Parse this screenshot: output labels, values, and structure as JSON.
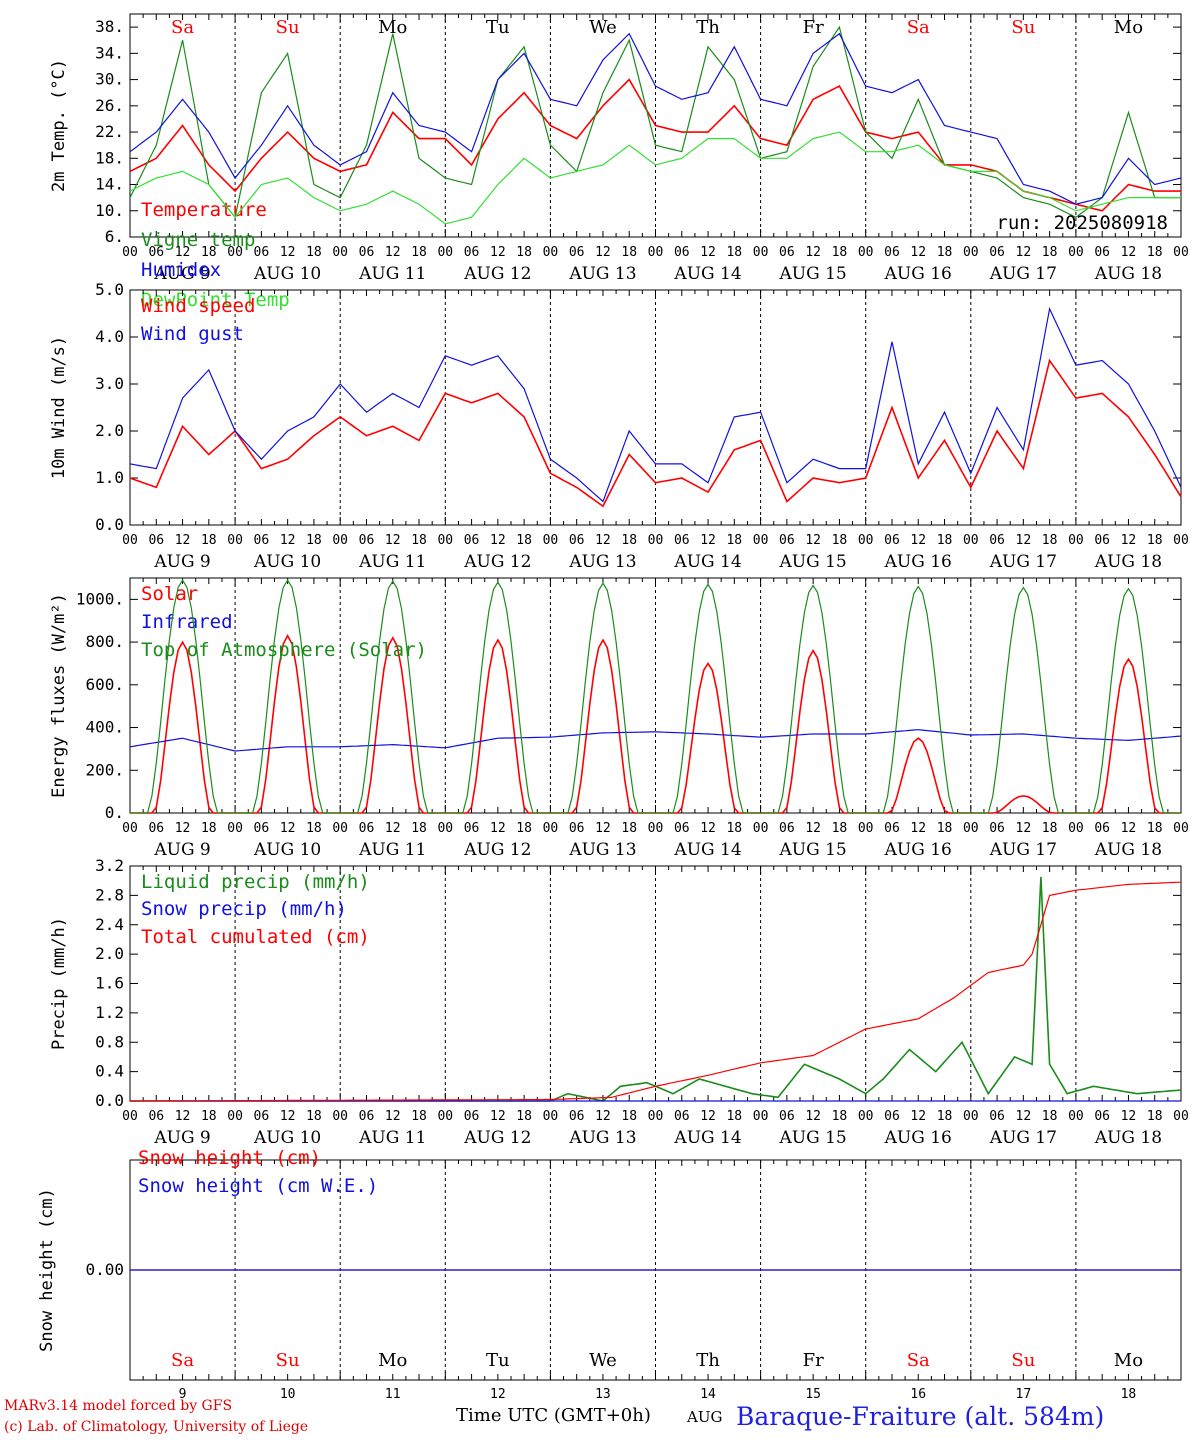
{
  "colors": {
    "red": "#ff0000",
    "blue": "#1010e0",
    "green": "#1a8c1a",
    "lightgreen": "#32e032"
  },
  "weekdays": [
    "Sa",
    "Su",
    "Mo",
    "Tu",
    "We",
    "Th",
    "Fr",
    "Sa",
    "Su",
    "Mo"
  ],
  "weekday_colors": [
    "red",
    "red",
    "black",
    "black",
    "black",
    "black",
    "black",
    "red",
    "red",
    "black"
  ],
  "dates": [
    "AUG  9",
    "AUG 10",
    "AUG 11",
    "AUG 12",
    "AUG 13",
    "AUG 14",
    "AUG 15",
    "AUG 16",
    "AUG 17",
    "AUG 18"
  ],
  "day_numbers": [
    "9",
    "10",
    "11",
    "12",
    "13",
    "14",
    "15",
    "16",
    "17",
    "18"
  ],
  "hour_ticks": [
    "00",
    "06",
    "12",
    "18"
  ],
  "run_label": "run: 2025080918",
  "footer": {
    "line1": "MARv3.14 model forced by GFS",
    "line2": "(c) Lab. of Climatology, University of Liege",
    "time_label": "Time UTC (GMT+0h)",
    "month": "AUG",
    "station": "Baraque-Fraiture (alt. 584m)"
  },
  "chart_data": [
    {
      "type": "line",
      "ylabel": "2m Temp. (°C)",
      "ylim": [
        6,
        40
      ],
      "yticks": [
        "6.",
        "10.",
        "14.",
        "18.",
        "22.",
        "26.",
        "30.",
        "34.",
        "38."
      ],
      "x_unit": "hours since AUG 9 00 UTC",
      "series": [
        {
          "name": "Temperature",
          "color": "red",
          "x": [
            0,
            6,
            12,
            18,
            24,
            30,
            36,
            42,
            48,
            54,
            60,
            66,
            72,
            78,
            84,
            90,
            96,
            102,
            108,
            114,
            120,
            126,
            132,
            138,
            144,
            150,
            156,
            162,
            168,
            174,
            180,
            186,
            192,
            198,
            204,
            210,
            216,
            222,
            228,
            234,
            240
          ],
          "values": [
            16,
            18,
            23,
            17,
            13,
            18,
            22,
            18,
            16,
            17,
            25,
            21,
            21,
            17,
            24,
            28,
            23,
            21,
            26,
            30,
            23,
            22,
            22,
            26,
            21,
            20,
            27,
            29,
            22,
            21,
            22,
            17,
            17,
            16,
            13,
            12,
            11,
            10,
            14,
            13,
            13
          ]
        },
        {
          "name": "Vigne temp",
          "color": "green",
          "x": [
            0,
            6,
            12,
            18,
            24,
            30,
            36,
            42,
            48,
            54,
            60,
            66,
            72,
            78,
            84,
            90,
            96,
            102,
            108,
            114,
            120,
            126,
            132,
            138,
            144,
            150,
            156,
            162,
            168,
            174,
            180,
            186,
            192,
            198,
            204,
            210,
            216,
            222,
            228,
            234,
            240
          ],
          "values": [
            12,
            20,
            36,
            14,
            9,
            28,
            34,
            14,
            12,
            20,
            37,
            18,
            15,
            14,
            30,
            35,
            20,
            16,
            28,
            36,
            20,
            19,
            35,
            30,
            18,
            19,
            32,
            38,
            22,
            18,
            27,
            17,
            16,
            15,
            12,
            11,
            9,
            12,
            25,
            12,
            12
          ]
        },
        {
          "name": "Humidex",
          "color": "blue",
          "x": [
            0,
            6,
            12,
            18,
            24,
            30,
            36,
            42,
            48,
            54,
            60,
            66,
            72,
            78,
            84,
            90,
            96,
            102,
            108,
            114,
            120,
            126,
            132,
            138,
            144,
            150,
            156,
            162,
            168,
            174,
            180,
            186,
            192,
            198,
            204,
            210,
            216,
            222,
            228,
            234,
            240
          ],
          "values": [
            19,
            22,
            27,
            22,
            15,
            20,
            26,
            20,
            17,
            19,
            28,
            23,
            22,
            19,
            30,
            34,
            27,
            26,
            33,
            37,
            29,
            27,
            28,
            35,
            27,
            26,
            34,
            37,
            29,
            28,
            30,
            23,
            22,
            21,
            14,
            13,
            11,
            12,
            18,
            14,
            15
          ]
        },
        {
          "name": "DewPoint Temp",
          "color": "lightgreen",
          "x": [
            0,
            6,
            12,
            18,
            24,
            30,
            36,
            42,
            48,
            54,
            60,
            66,
            72,
            78,
            84,
            90,
            96,
            102,
            108,
            114,
            120,
            126,
            132,
            138,
            144,
            150,
            156,
            162,
            168,
            174,
            180,
            186,
            192,
            198,
            204,
            210,
            216,
            222,
            228,
            234,
            240
          ],
          "values": [
            13,
            15,
            16,
            14,
            9,
            14,
            15,
            12,
            10,
            11,
            13,
            11,
            8,
            9,
            14,
            18,
            15,
            16,
            17,
            20,
            17,
            18,
            21,
            21,
            18,
            18,
            21,
            22,
            19,
            19,
            20,
            17,
            16,
            16,
            13,
            12,
            10,
            11,
            12,
            12,
            12
          ]
        }
      ]
    },
    {
      "type": "line",
      "ylabel": "10m Wind (m/s)",
      "ylim": [
        0,
        5
      ],
      "yticks": [
        "0.0",
        "1.0",
        "2.0",
        "3.0",
        "4.0",
        "5.0"
      ],
      "series": [
        {
          "name": "Wind speed",
          "color": "red",
          "x": [
            0,
            6,
            12,
            18,
            24,
            30,
            36,
            42,
            48,
            54,
            60,
            66,
            72,
            78,
            84,
            90,
            96,
            102,
            108,
            114,
            120,
            126,
            132,
            138,
            144,
            150,
            156,
            162,
            168,
            174,
            180,
            186,
            192,
            198,
            204,
            210,
            216,
            222,
            228,
            234,
            240
          ],
          "values": [
            1.0,
            0.8,
            2.1,
            1.5,
            2.0,
            1.2,
            1.4,
            1.9,
            2.3,
            1.9,
            2.1,
            1.8,
            2.8,
            2.6,
            2.8,
            2.3,
            1.1,
            0.8,
            0.4,
            1.5,
            0.9,
            1.0,
            0.7,
            1.6,
            1.8,
            0.5,
            1.0,
            0.9,
            1.0,
            2.5,
            1.0,
            1.8,
            0.8,
            2.0,
            1.2,
            3.5,
            2.7,
            2.8,
            2.3,
            1.5,
            0.6
          ]
        },
        {
          "name": "Wind gust",
          "color": "blue",
          "x": [
            0,
            6,
            12,
            18,
            24,
            30,
            36,
            42,
            48,
            54,
            60,
            66,
            72,
            78,
            84,
            90,
            96,
            102,
            108,
            114,
            120,
            126,
            132,
            138,
            144,
            150,
            156,
            162,
            168,
            174,
            180,
            186,
            192,
            198,
            204,
            210,
            216,
            222,
            228,
            234,
            240
          ],
          "values": [
            1.3,
            1.2,
            2.7,
            3.3,
            2.0,
            1.4,
            2.0,
            2.3,
            3.0,
            2.4,
            2.8,
            2.5,
            3.6,
            3.4,
            3.6,
            2.9,
            1.4,
            1.0,
            0.5,
            2.0,
            1.3,
            1.3,
            0.9,
            2.3,
            2.4,
            0.9,
            1.4,
            1.2,
            1.2,
            3.9,
            1.3,
            2.4,
            1.1,
            2.5,
            1.6,
            4.6,
            3.4,
            3.5,
            3.0,
            2.0,
            0.8
          ]
        }
      ]
    },
    {
      "type": "line",
      "ylabel": "Energy fluxes (W/m²)",
      "ylim": [
        0,
        1100
      ],
      "yticks": [
        "0.",
        "200.",
        "400.",
        "600.",
        "800.",
        "1000."
      ],
      "series": [
        {
          "name": "Solar",
          "color": "red",
          "peaks": [
            800,
            830,
            820,
            810,
            810,
            700,
            760,
            350,
            80,
            720
          ]
        },
        {
          "name": "Infrared",
          "color": "blue",
          "x": [
            0,
            12,
            24,
            36,
            48,
            60,
            72,
            84,
            96,
            108,
            120,
            132,
            144,
            156,
            168,
            180,
            192,
            204,
            216,
            228,
            240
          ],
          "values": [
            310,
            350,
            290,
            310,
            310,
            320,
            305,
            350,
            355,
            375,
            380,
            370,
            355,
            370,
            370,
            390,
            365,
            370,
            350,
            340,
            360
          ]
        },
        {
          "name": "Top of Atmosphere (Solar)",
          "color": "green",
          "peaks": [
            1090,
            1090,
            1085,
            1080,
            1075,
            1070,
            1065,
            1060,
            1055,
            1050
          ]
        }
      ]
    },
    {
      "type": "line",
      "ylabel": "Precip (mm/h)",
      "ylim": [
        0,
        3.2
      ],
      "yticks": [
        "0.0",
        "0.4",
        "0.8",
        "1.2",
        "1.6",
        "2.0",
        "2.4",
        "2.8",
        "3.2"
      ],
      "series": [
        {
          "name": "Liquid precip (mm/h)",
          "color": "green",
          "x": [
            0,
            96,
            100,
            108,
            112,
            118,
            124,
            130,
            136,
            142,
            148,
            154,
            158,
            162,
            168,
            172,
            178,
            184,
            190,
            196,
            202,
            206,
            208,
            210,
            214,
            220,
            230,
            240
          ],
          "values": [
            0,
            0,
            0.1,
            0,
            0.2,
            0.25,
            0.1,
            0.3,
            0.2,
            0.1,
            0.05,
            0.5,
            0.4,
            0.3,
            0.1,
            0.3,
            0.7,
            0.4,
            0.8,
            0.1,
            0.6,
            0.5,
            3.05,
            0.5,
            0.1,
            0.2,
            0.1,
            0.15
          ]
        },
        {
          "name": "Snow precip (mm/h)",
          "color": "blue",
          "x": [
            0,
            240
          ],
          "values": [
            0,
            0
          ]
        },
        {
          "name": "Total cumulated (cm)",
          "color": "red",
          "x": [
            0,
            96,
            110,
            120,
            132,
            144,
            156,
            168,
            180,
            188,
            196,
            204,
            206,
            210,
            216,
            228,
            240
          ],
          "values": [
            0,
            0.02,
            0.05,
            0.2,
            0.35,
            0.52,
            0.62,
            0.98,
            1.12,
            1.4,
            1.75,
            1.85,
            2.0,
            2.8,
            2.87,
            2.95,
            2.98
          ]
        }
      ]
    },
    {
      "type": "line",
      "ylabel": "Snow height (cm)",
      "yticks": [
        "0.00"
      ],
      "series": [
        {
          "name": "Snow height (cm)",
          "color": "red",
          "values": [
            0
          ]
        },
        {
          "name": "Snow height (cm W.E.)",
          "color": "blue",
          "values": [
            0
          ]
        }
      ]
    }
  ]
}
